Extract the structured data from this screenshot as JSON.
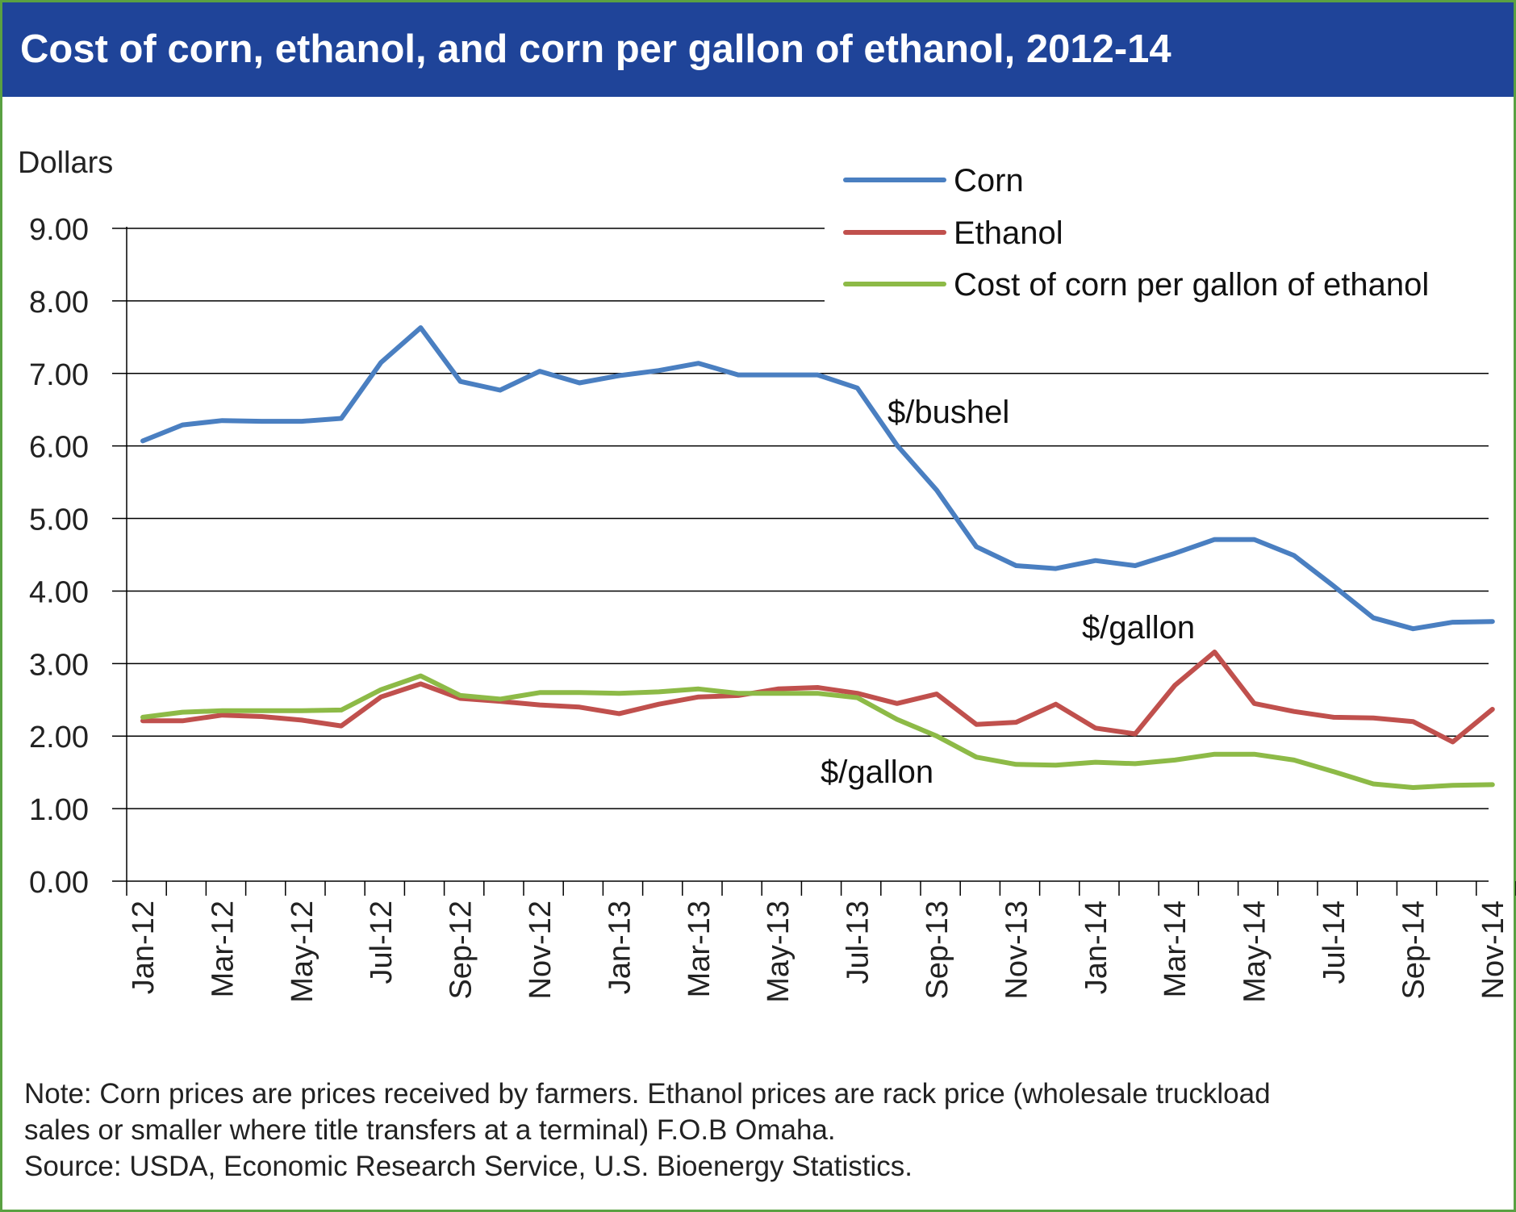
{
  "title": "Cost of corn, ethanol, and corn per gallon of ethanol, 2012-14",
  "colors": {
    "header_bg": "#1f4499",
    "frame_border": "#5aa142",
    "corn": "#4a7fc1",
    "ethanol": "#c0504d",
    "cost_per_gallon": "#8dba47"
  },
  "chart_data": {
    "type": "line",
    "ylabel": "Dollars",
    "ylim": [
      0,
      9
    ],
    "yticks": [
      "0.00",
      "1.00",
      "2.00",
      "3.00",
      "4.00",
      "5.00",
      "6.00",
      "7.00",
      "8.00",
      "9.00"
    ],
    "grid": true,
    "legend_position": "top-right",
    "x": [
      "Jan-12",
      "Feb-12",
      "Mar-12",
      "Apr-12",
      "May-12",
      "Jun-12",
      "Jul-12",
      "Aug-12",
      "Sep-12",
      "Oct-12",
      "Nov-12",
      "Dec-12",
      "Jan-13",
      "Feb-13",
      "Mar-13",
      "Apr-13",
      "May-13",
      "Jun-13",
      "Jul-13",
      "Aug-13",
      "Sep-13",
      "Oct-13",
      "Nov-13",
      "Dec-13",
      "Jan-14",
      "Feb-14",
      "Mar-14",
      "Apr-14",
      "May-14",
      "Jun-14",
      "Jul-14",
      "Aug-14",
      "Sep-14",
      "Oct-14",
      "Nov-14"
    ],
    "xtick_labels": [
      "Jan-12",
      "Mar-12",
      "May-12",
      "Jul-12",
      "Sep-12",
      "Nov-12",
      "Jan-13",
      "Mar-13",
      "May-13",
      "Jul-13",
      "Sep-13",
      "Nov-13",
      "Jan-14",
      "Mar-14",
      "May-14",
      "Jul-14",
      "Sep-14",
      "Nov-14"
    ],
    "series": [
      {
        "name": "Corn",
        "color": "#4a7fc1",
        "values": [
          6.07,
          6.29,
          6.35,
          6.34,
          6.34,
          6.38,
          7.15,
          7.63,
          6.89,
          6.77,
          7.03,
          6.87,
          6.97,
          7.04,
          7.14,
          6.98,
          6.98,
          6.98,
          6.8,
          6.01,
          5.39,
          4.61,
          4.35,
          4.31,
          4.42,
          4.35,
          4.52,
          4.71,
          4.71,
          4.49,
          4.07,
          3.63,
          3.48,
          3.57,
          3.58
        ]
      },
      {
        "name": "Ethanol",
        "color": "#c0504d",
        "values": [
          2.21,
          2.21,
          2.29,
          2.27,
          2.22,
          2.14,
          2.54,
          2.72,
          2.52,
          2.48,
          2.43,
          2.4,
          2.31,
          2.44,
          2.54,
          2.56,
          2.65,
          2.67,
          2.59,
          2.45,
          2.58,
          2.16,
          2.19,
          2.44,
          2.11,
          2.03,
          2.7,
          3.16,
          2.45,
          2.34,
          2.26,
          2.25,
          2.2,
          1.92,
          2.37
        ]
      },
      {
        "name": "Cost of corn per gallon of ethanol",
        "color": "#8dba47",
        "values": [
          2.26,
          2.33,
          2.35,
          2.35,
          2.35,
          2.36,
          2.64,
          2.83,
          2.56,
          2.51,
          2.6,
          2.6,
          2.59,
          2.61,
          2.65,
          2.59,
          2.59,
          2.59,
          2.53,
          2.23,
          2.0,
          1.71,
          1.61,
          1.6,
          1.64,
          1.62,
          1.67,
          1.75,
          1.75,
          1.67,
          1.51,
          1.34,
          1.29,
          1.32,
          1.33
        ]
      }
    ],
    "annotations": [
      "$/bushel",
      "$/gallon",
      "$/gallon"
    ]
  },
  "note_lines": [
    "Note: Corn prices are prices received by farmers. Ethanol prices are rack price (wholesale truckload",
    "sales or smaller where title transfers at a terminal) F.O.B  Omaha.",
    "Source: USDA, Economic Research Service, U.S. Bioenergy Statistics."
  ]
}
